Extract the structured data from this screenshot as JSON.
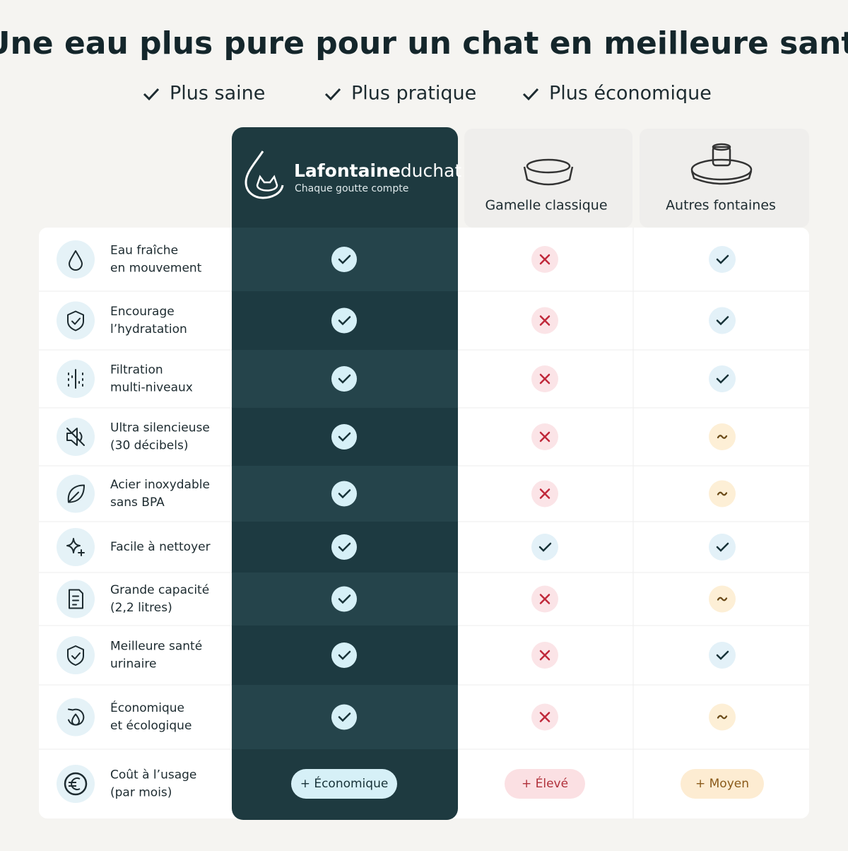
{
  "title": "Une eau plus pure pour un chat en meilleure santé",
  "benefits": [
    "Plus saine",
    "Plus pratique",
    "Plus économique"
  ],
  "columns": [
    {
      "name_bold": "Lafontaine",
      "name_light": "duchat",
      "tagline": "Chaque goutte compte"
    },
    {
      "name": "Gamelle classique"
    },
    {
      "name": "Autres fontaines"
    }
  ],
  "rows": [
    {
      "label": [
        "Eau fraîche",
        "en mouvement"
      ],
      "status": [
        "yes",
        "no",
        "yes"
      ]
    },
    {
      "label": [
        "Encourage",
        "l’hydratation"
      ],
      "status": [
        "yes",
        "no",
        "yes"
      ]
    },
    {
      "label": [
        "Filtration",
        "multi-niveaux"
      ],
      "status": [
        "yes",
        "no",
        "yes"
      ]
    },
    {
      "label": [
        "Ultra silencieuse",
        "(30 décibels)"
      ],
      "status": [
        "yes",
        "no",
        "partial"
      ]
    },
    {
      "label": [
        "Acier inoxydable",
        "sans BPA"
      ],
      "status": [
        "yes",
        "no",
        "partial"
      ]
    },
    {
      "label": [
        "Facile à nettoyer"
      ],
      "status": [
        "yes",
        "yes",
        "yes"
      ]
    },
    {
      "label": [
        "Grande capacité",
        "(2,2 litres)"
      ],
      "status": [
        "yes",
        "no",
        "partial"
      ]
    },
    {
      "label": [
        "Meilleure santé",
        "urinaire"
      ],
      "status": [
        "yes",
        "no",
        "yes"
      ]
    },
    {
      "label": [
        "Économique",
        "et écologique"
      ],
      "status": [
        "yes",
        "no",
        "partial"
      ]
    }
  ],
  "cost_row": {
    "label": [
      "Coût à l’usage",
      "(par mois)"
    ],
    "values": [
      "+ Économique",
      "+ Élevé",
      "+ Moyen"
    ]
  }
}
